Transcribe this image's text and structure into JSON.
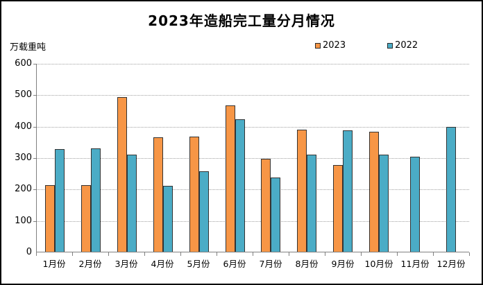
{
  "title": "2023年造船完工量分月情况",
  "y_axis_unit": "万载重吨",
  "chart_data": {
    "type": "bar",
    "title": "2023年造船完工量分月情况",
    "ylabel": "万载重吨",
    "xlabel": "",
    "ylim": [
      0,
      600
    ],
    "yticks": [
      600,
      500,
      400,
      300,
      200,
      100,
      0
    ],
    "grid": true,
    "legend_position": "top-right",
    "categories": [
      "1月份",
      "2月份",
      "3月份",
      "4月份",
      "5月份",
      "6月份",
      "7月份",
      "8月份",
      "9月份",
      "10月份",
      "11月份",
      "12月份"
    ],
    "series": [
      {
        "name": "2023",
        "color": "#F79646",
        "values": [
          211,
          211,
          493,
          363,
          367,
          465,
          296,
          389,
          276,
          381,
          null,
          null
        ]
      },
      {
        "name": "2022",
        "color": "#4BACC6",
        "values": [
          326,
          328,
          308,
          210,
          257,
          422,
          236,
          309,
          386,
          308,
          303,
          396
        ]
      }
    ]
  },
  "colors": {
    "bar_2023": "#F79646",
    "bar_2022": "#4BACC6",
    "bar_border": "#333333",
    "gridline": "#a0a0a0",
    "axis": "#808080",
    "text": "#000000",
    "frame_border": "#000000",
    "background": "#ffffff"
  }
}
